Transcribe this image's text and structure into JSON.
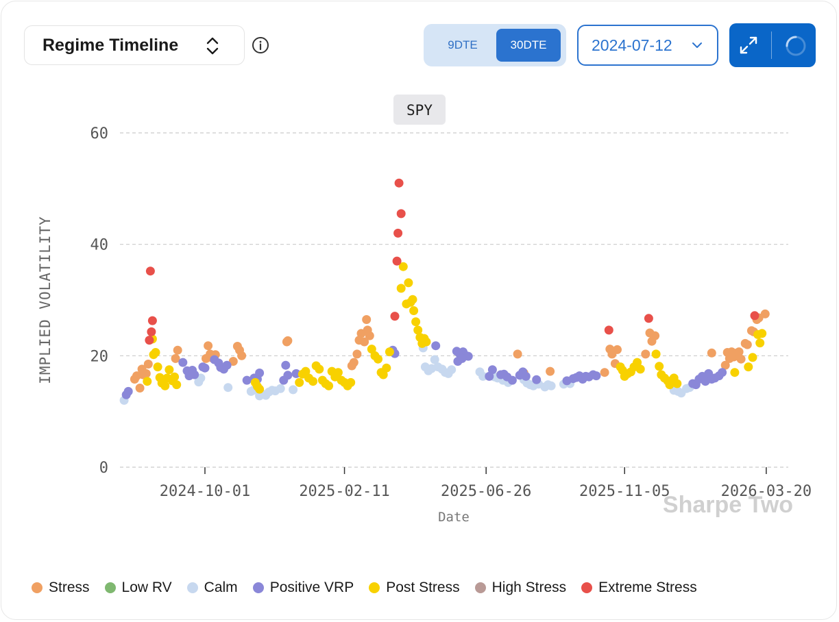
{
  "header": {
    "view_selector_label": "Regime Timeline",
    "dte_options": [
      "9DTE",
      "30DTE"
    ],
    "dte_selected": "30DTE",
    "date_value": "2024-07-12"
  },
  "watermark": "Sharpe Two",
  "colors": {
    "Stress": "#f0a062",
    "Low RV": "#7fb870",
    "Calm": "#c7d8ef",
    "Positive VRP": "#8a87d8",
    "Post Stress": "#f8d100",
    "High Stress": "#b99a96",
    "Extreme Stress": "#e8504a"
  },
  "chart_data": {
    "type": "scatter",
    "title": "SPY",
    "xlabel": "Date",
    "ylabel": "IMPLIED VOLATILITY",
    "ylim": [
      0,
      60
    ],
    "yticks": [
      0,
      20,
      40,
      60
    ],
    "xlim": [
      "2024-07-12",
      "2026-04-10"
    ],
    "xticks": [
      "2024-10-01",
      "2025-02-11",
      "2025-06-26",
      "2025-11-05",
      "2026-03-20"
    ],
    "grid": "horizontal dashed",
    "legend_position": "bottom",
    "legend": [
      "Stress",
      "Low RV",
      "Calm",
      "Positive VRP",
      "Post Stress",
      "High Stress",
      "Extreme Stress"
    ],
    "series": [
      {
        "name": "Stress",
        "points": [
          [
            "2024-07-26",
            15.8
          ],
          [
            "2024-07-28",
            16.4
          ],
          [
            "2024-07-31",
            14.2
          ],
          [
            "2024-08-02",
            17.6
          ],
          [
            "2024-08-03",
            16.6
          ],
          [
            "2024-08-06",
            16.8
          ],
          [
            "2024-08-08",
            18.5
          ],
          [
            "2024-09-03",
            19.5
          ],
          [
            "2024-09-05",
            21.0
          ],
          [
            "2024-10-02",
            19.5
          ],
          [
            "2024-10-04",
            21.8
          ],
          [
            "2024-10-06",
            20.3
          ],
          [
            "2024-10-08",
            19.6
          ],
          [
            "2024-10-11",
            20.2
          ],
          [
            "2024-10-28",
            19.0
          ],
          [
            "2024-11-01",
            21.7
          ],
          [
            "2024-11-03",
            21.0
          ],
          [
            "2024-11-05",
            20.0
          ],
          [
            "2024-12-18",
            22.5
          ],
          [
            "2024-12-19",
            22.7
          ],
          [
            "2025-02-18",
            18.2
          ],
          [
            "2025-02-20",
            18.8
          ],
          [
            "2025-02-23",
            20.3
          ],
          [
            "2025-02-25",
            22.8
          ],
          [
            "2025-02-27",
            24.0
          ],
          [
            "2025-03-02",
            22.5
          ],
          [
            "2025-03-04",
            26.5
          ],
          [
            "2025-03-05",
            24.6
          ],
          [
            "2025-03-07",
            23.6
          ],
          [
            "2025-07-26",
            20.3
          ],
          [
            "2025-08-01",
            16.9
          ],
          [
            "2025-08-26",
            17.2
          ],
          [
            "2025-10-17",
            17.0
          ],
          [
            "2025-10-22",
            21.2
          ],
          [
            "2025-10-24",
            20.3
          ],
          [
            "2025-10-27",
            18.6
          ],
          [
            "2025-10-29",
            21.1
          ],
          [
            "2025-11-25",
            20.3
          ],
          [
            "2025-11-29",
            24.1
          ],
          [
            "2025-12-01",
            22.6
          ],
          [
            "2025-12-04",
            23.6
          ],
          [
            "2026-01-27",
            20.5
          ],
          [
            "2026-02-09",
            18.3
          ],
          [
            "2026-02-11",
            20.6
          ],
          [
            "2026-02-13",
            19.5
          ],
          [
            "2026-02-15",
            20.7
          ],
          [
            "2026-02-17",
            19.8
          ],
          [
            "2026-02-20",
            20.5
          ],
          [
            "2026-02-22",
            20.7
          ],
          [
            "2026-02-24",
            19.4
          ],
          [
            "2026-02-28",
            22.2
          ],
          [
            "2026-03-02",
            22.0
          ],
          [
            "2026-03-06",
            24.5
          ],
          [
            "2026-03-08",
            24.3
          ],
          [
            "2026-03-11",
            26.5
          ],
          [
            "2026-03-13",
            26.8
          ],
          [
            "2026-03-19",
            27.5
          ]
        ]
      },
      {
        "name": "Low RV",
        "points": []
      },
      {
        "name": "Calm",
        "points": [
          [
            "2024-07-16",
            12.0
          ],
          [
            "2024-09-25",
            15.3
          ],
          [
            "2024-09-27",
            16.0
          ],
          [
            "2024-10-23",
            14.3
          ],
          [
            "2024-11-14",
            13.6
          ],
          [
            "2024-11-16",
            13.8
          ],
          [
            "2024-11-22",
            12.8
          ],
          [
            "2024-11-25",
            13.1
          ],
          [
            "2024-11-28",
            12.9
          ],
          [
            "2024-12-01",
            13.5
          ],
          [
            "2024-12-04",
            13.8
          ],
          [
            "2024-12-07",
            13.7
          ],
          [
            "2024-12-12",
            14.1
          ],
          [
            "2024-12-24",
            13.9
          ],
          [
            "2025-04-27",
            21.4
          ],
          [
            "2025-04-29",
            18.0
          ],
          [
            "2025-05-02",
            17.3
          ],
          [
            "2025-05-05",
            17.7
          ],
          [
            "2025-05-08",
            19.3
          ],
          [
            "2025-05-11",
            18.0
          ],
          [
            "2025-05-15",
            17.6
          ],
          [
            "2025-05-18",
            17.0
          ],
          [
            "2025-05-21",
            16.8
          ],
          [
            "2025-05-24",
            17.5
          ],
          [
            "2025-06-20",
            17.1
          ],
          [
            "2025-06-23",
            16.3
          ],
          [
            "2025-07-04",
            16.2
          ],
          [
            "2025-07-07",
            16.0
          ],
          [
            "2025-07-12",
            15.6
          ],
          [
            "2025-07-17",
            15.2
          ],
          [
            "2025-08-01",
            15.7
          ],
          [
            "2025-08-04",
            15.1
          ],
          [
            "2025-08-07",
            14.8
          ],
          [
            "2025-08-10",
            14.6
          ],
          [
            "2025-08-15",
            14.9
          ],
          [
            "2025-08-21",
            14.4
          ],
          [
            "2025-08-24",
            14.8
          ],
          [
            "2025-08-27",
            14.6
          ],
          [
            "2025-09-08",
            14.9
          ],
          [
            "2025-09-14",
            15.0
          ],
          [
            "2025-12-22",
            13.8
          ],
          [
            "2025-12-26",
            13.6
          ],
          [
            "2025-12-29",
            13.3
          ],
          [
            "2026-01-03",
            14.1
          ],
          [
            "2026-01-06",
            14.3
          ]
        ]
      },
      {
        "name": "Positive VRP",
        "points": [
          [
            "2024-07-18",
            13.0
          ],
          [
            "2024-07-20",
            13.6
          ],
          [
            "2024-09-10",
            18.8
          ],
          [
            "2024-09-14",
            17.3
          ],
          [
            "2024-09-16",
            16.4
          ],
          [
            "2024-09-19",
            17.4
          ],
          [
            "2024-09-21",
            16.6
          ],
          [
            "2024-09-29",
            18.0
          ],
          [
            "2024-10-01",
            17.8
          ],
          [
            "2024-10-10",
            19.3
          ],
          [
            "2024-10-14",
            18.7
          ],
          [
            "2024-10-16",
            17.9
          ],
          [
            "2024-10-19",
            17.6
          ],
          [
            "2024-10-22",
            18.3
          ],
          [
            "2024-11-10",
            15.6
          ],
          [
            "2024-11-17",
            16.0
          ],
          [
            "2024-11-20",
            15.8
          ],
          [
            "2024-11-22",
            16.9
          ],
          [
            "2024-12-15",
            15.6
          ],
          [
            "2024-12-17",
            18.3
          ],
          [
            "2024-12-19",
            16.5
          ],
          [
            "2024-12-27",
            16.8
          ],
          [
            "2025-03-29",
            21.0
          ],
          [
            "2025-03-31",
            20.4
          ],
          [
            "2025-05-09",
            21.8
          ],
          [
            "2025-05-29",
            20.8
          ],
          [
            "2025-06-01",
            20.3
          ],
          [
            "2025-06-04",
            20.7
          ],
          [
            "2025-06-07",
            20.0
          ],
          [
            "2025-06-09",
            19.9
          ],
          [
            "2025-05-30",
            19.0
          ],
          [
            "2025-06-03",
            19.5
          ],
          [
            "2025-06-29",
            16.3
          ],
          [
            "2025-07-02",
            17.5
          ],
          [
            "2025-07-10",
            16.6
          ],
          [
            "2025-07-13",
            16.7
          ],
          [
            "2025-07-16",
            16.2
          ],
          [
            "2025-07-21",
            15.6
          ],
          [
            "2025-07-28",
            16.5
          ],
          [
            "2025-07-31",
            17.1
          ],
          [
            "2025-08-03",
            16.3
          ],
          [
            "2025-08-13",
            15.7
          ],
          [
            "2025-09-11",
            15.5
          ],
          [
            "2025-09-17",
            15.9
          ],
          [
            "2025-09-20",
            16.1
          ],
          [
            "2025-09-23",
            16.4
          ],
          [
            "2025-09-26",
            15.8
          ],
          [
            "2025-09-29",
            16.3
          ],
          [
            "2025-10-02",
            16.2
          ],
          [
            "2025-10-06",
            16.6
          ],
          [
            "2025-10-09",
            16.4
          ],
          [
            "2026-01-09",
            15.0
          ],
          [
            "2026-01-12",
            14.8
          ],
          [
            "2026-01-15",
            15.8
          ],
          [
            "2026-01-18",
            16.3
          ],
          [
            "2026-01-21",
            15.4
          ],
          [
            "2026-01-24",
            16.8
          ],
          [
            "2026-01-27",
            15.8
          ],
          [
            "2026-01-30",
            16.0
          ],
          [
            "2026-02-03",
            16.4
          ],
          [
            "2026-02-06",
            17.0
          ]
        ]
      },
      {
        "name": "Post Stress",
        "points": [
          [
            "2024-08-07",
            15.4
          ],
          [
            "2024-08-12",
            23.0
          ],
          [
            "2024-08-13",
            20.2
          ],
          [
            "2024-08-15",
            20.6
          ],
          [
            "2024-08-17",
            18.0
          ],
          [
            "2024-08-19",
            16.1
          ],
          [
            "2024-08-21",
            15.1
          ],
          [
            "2024-08-24",
            14.6
          ],
          [
            "2024-08-26",
            16.0
          ],
          [
            "2024-08-28",
            17.5
          ],
          [
            "2024-08-31",
            15.5
          ],
          [
            "2024-09-02",
            16.2
          ],
          [
            "2024-09-04",
            14.8
          ],
          [
            "2024-11-18",
            15.2
          ],
          [
            "2024-11-20",
            14.5
          ],
          [
            "2024-11-22",
            14.0
          ],
          [
            "2024-12-30",
            15.2
          ],
          [
            "2025-01-02",
            16.7
          ],
          [
            "2025-01-05",
            17.2
          ],
          [
            "2025-01-08",
            16.0
          ],
          [
            "2025-01-12",
            15.4
          ],
          [
            "2025-01-15",
            18.2
          ],
          [
            "2025-01-18",
            17.6
          ],
          [
            "2025-01-21",
            15.6
          ],
          [
            "2025-01-24",
            15.0
          ],
          [
            "2025-01-27",
            14.6
          ],
          [
            "2025-01-30",
            17.2
          ],
          [
            "2025-02-02",
            16.2
          ],
          [
            "2025-02-05",
            17.0
          ],
          [
            "2025-02-08",
            15.6
          ],
          [
            "2025-02-11",
            15.2
          ],
          [
            "2025-02-14",
            14.6
          ],
          [
            "2025-02-17",
            15.2
          ],
          [
            "2025-03-09",
            21.2
          ],
          [
            "2025-03-12",
            20.0
          ],
          [
            "2025-03-15",
            19.4
          ],
          [
            "2025-03-18",
            17.0
          ],
          [
            "2025-03-20",
            16.6
          ],
          [
            "2025-03-23",
            17.8
          ],
          [
            "2025-03-26",
            20.7
          ],
          [
            "2025-04-06",
            32.1
          ],
          [
            "2025-04-08",
            36.0
          ],
          [
            "2025-04-11",
            29.3
          ],
          [
            "2025-04-13",
            33.1
          ],
          [
            "2025-04-15",
            29.6
          ],
          [
            "2025-04-17",
            30.1
          ],
          [
            "2025-04-18",
            28.1
          ],
          [
            "2025-04-20",
            26.1
          ],
          [
            "2025-04-22",
            24.6
          ],
          [
            "2025-04-24",
            23.3
          ],
          [
            "2025-04-26",
            22.2
          ],
          [
            "2025-04-28",
            23.1
          ],
          [
            "2025-04-30",
            22.5
          ],
          [
            "2025-11-01",
            18.0
          ],
          [
            "2025-11-03",
            17.4
          ],
          [
            "2025-11-05",
            16.3
          ],
          [
            "2025-11-08",
            16.8
          ],
          [
            "2025-11-11",
            17.1
          ],
          [
            "2025-11-14",
            18.0
          ],
          [
            "2025-11-17",
            18.8
          ],
          [
            "2025-11-20",
            17.6
          ],
          [
            "2025-12-05",
            20.3
          ],
          [
            "2025-12-08",
            18.1
          ],
          [
            "2025-12-10",
            16.6
          ],
          [
            "2025-12-13",
            16.0
          ],
          [
            "2025-12-16",
            15.5
          ],
          [
            "2025-12-18",
            14.8
          ],
          [
            "2025-12-20",
            15.3
          ],
          [
            "2025-12-22",
            16.0
          ],
          [
            "2025-12-25",
            15.0
          ],
          [
            "2026-02-18",
            17.0
          ],
          [
            "2026-03-03",
            18.0
          ],
          [
            "2026-03-07",
            19.7
          ],
          [
            "2026-03-12",
            23.8
          ],
          [
            "2026-03-14",
            22.3
          ],
          [
            "2026-03-16",
            24.0
          ]
        ]
      },
      {
        "name": "High Stress",
        "points": []
      },
      {
        "name": "Extreme Stress",
        "points": [
          [
            "2024-08-09",
            22.8
          ],
          [
            "2024-08-10",
            35.2
          ],
          [
            "2024-08-11",
            24.3
          ],
          [
            "2024-08-12",
            26.3
          ],
          [
            "2025-03-31",
            27.1
          ],
          [
            "2025-04-02",
            37.0
          ],
          [
            "2025-04-03",
            42.0
          ],
          [
            "2025-04-04",
            51.0
          ],
          [
            "2025-04-06",
            45.5
          ],
          [
            "2025-10-21",
            24.6
          ],
          [
            "2025-11-28",
            26.7
          ],
          [
            "2026-03-09",
            27.2
          ]
        ]
      }
    ]
  }
}
